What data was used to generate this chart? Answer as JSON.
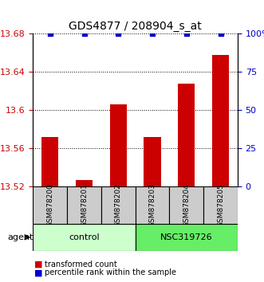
{
  "title": "GDS4877 / 208904_s_at",
  "samples": [
    "GSM878200",
    "GSM878201",
    "GSM878202",
    "GSM878203",
    "GSM878204",
    "GSM878205"
  ],
  "bar_values": [
    13.572,
    13.527,
    13.606,
    13.572,
    13.628,
    13.658
  ],
  "percentile_values": [
    100,
    100,
    100,
    100,
    100,
    100
  ],
  "ymin": 13.52,
  "ymax": 13.68,
  "yticks": [
    13.52,
    13.56,
    13.6,
    13.64,
    13.68
  ],
  "ytick_labels": [
    "13.52",
    "13.56",
    "13.6",
    "13.64",
    "13.68"
  ],
  "right_yticks": [
    0,
    25,
    50,
    75,
    100
  ],
  "right_ytick_labels": [
    "0",
    "25",
    "50",
    "75",
    "100%"
  ],
  "bar_color": "#cc0000",
  "dot_color": "#0000cc",
  "groups": [
    {
      "label": "control",
      "indices": [
        0,
        1,
        2
      ],
      "color": "#ccffcc"
    },
    {
      "label": "NSC319726",
      "indices": [
        3,
        4,
        5
      ],
      "color": "#66ee66"
    }
  ],
  "agent_label": "agent",
  "legend_items": [
    {
      "label": "transformed count",
      "color": "#cc0000"
    },
    {
      "label": "percentile rank within the sample",
      "color": "#0000cc"
    }
  ],
  "background_color": "#ffffff",
  "plot_bg": "#ffffff",
  "grid_color": "#000000",
  "sample_box_color": "#cccccc"
}
